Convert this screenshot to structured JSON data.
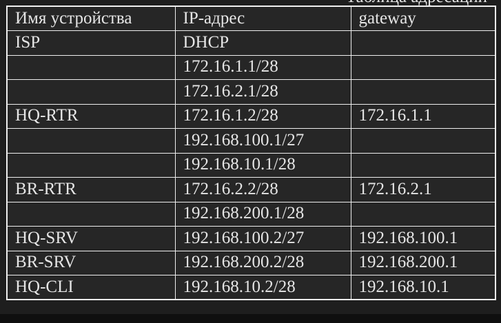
{
  "caption_fragment": "Таблица адресации",
  "table": {
    "columns": [
      "Имя устройства",
      "IP-адрес",
      "gateway"
    ],
    "rows": [
      {
        "device": "ISP",
        "ip": "DHCP",
        "gateway": ""
      },
      {
        "device": "",
        "ip": "172.16.1.1/28",
        "gateway": ""
      },
      {
        "device": "",
        "ip": "172.16.2.1/28",
        "gateway": ""
      },
      {
        "device": "HQ-RTR",
        "ip": "172.16.1.2/28",
        "gateway": "172.16.1.1"
      },
      {
        "device": "",
        "ip": "192.168.100.1/27",
        "gateway": ""
      },
      {
        "device": "",
        "ip": "192.168.10.1/28",
        "gateway": ""
      },
      {
        "device": "BR-RTR",
        "ip": "172.16.2.2/28",
        "gateway": "172.16.2.1"
      },
      {
        "device": "",
        "ip": "192.168.200.1/28",
        "gateway": ""
      },
      {
        "device": "HQ-SRV",
        "ip": "192.168.100.2/27",
        "gateway": "192.168.100.1"
      },
      {
        "device": "BR-SRV",
        "ip": "192.168.200.2/28",
        "gateway": "192.168.200.1"
      },
      {
        "device": "HQ-CLI",
        "ip": "192.168.10.2/28",
        "gateway": "192.168.10.1"
      }
    ]
  },
  "colors": {
    "outer_bg": "#0f0f0f",
    "page_bg": "#1e1e1e",
    "cell_bg": "#262626",
    "border": "#efefef",
    "text": "#e5e5e5"
  }
}
